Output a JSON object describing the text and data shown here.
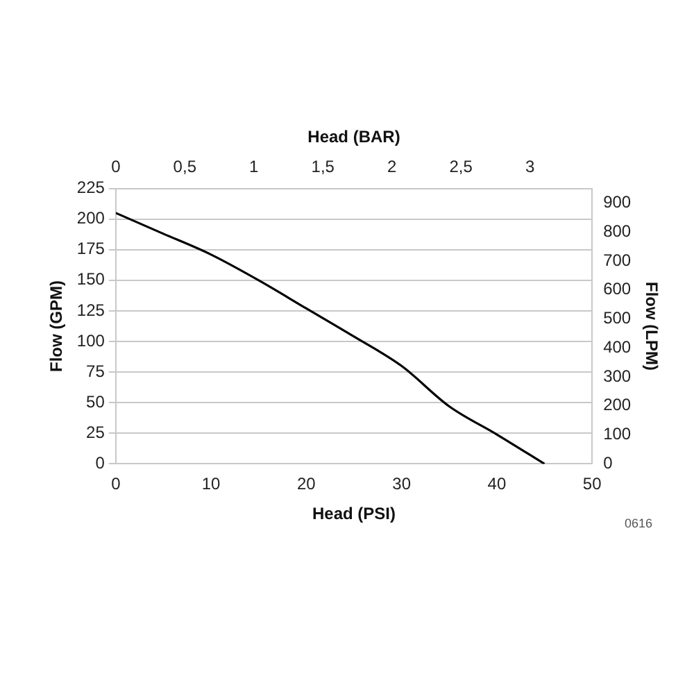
{
  "chart_data": {
    "type": "line",
    "xlabel": "Head (PSI)",
    "x2label": "Head (BAR)",
    "ylabel": "Flow (GPM)",
    "y2label": "Flow (LPM)",
    "x": [
      0,
      5,
      10,
      15,
      20,
      25,
      30,
      35,
      40,
      45
    ],
    "series": [
      {
        "color": "#000000",
        "values": [
          205,
          188,
          171,
          150,
          127,
          104,
          80,
          47,
          24,
          0
        ]
      }
    ],
    "xlim": [
      0,
      50
    ],
    "xticks": [
      0,
      10,
      20,
      30,
      40,
      50
    ],
    "x2lim": [
      0,
      3.45
    ],
    "x2ticks": [
      0,
      {
        "value": 0.5,
        "label": "0,5"
      },
      1,
      {
        "value": 1.5,
        "label": "1,5"
      },
      2,
      {
        "value": 2.5,
        "label": "2,5"
      },
      3
    ],
    "ylim": [
      0,
      225
    ],
    "yticks": [
      0,
      25,
      50,
      75,
      100,
      125,
      150,
      175,
      200,
      225
    ],
    "y2lim": [
      0,
      950
    ],
    "y2ticks": [
      0,
      100,
      200,
      300,
      400,
      500,
      600,
      700,
      800,
      900
    ],
    "grid": "y",
    "legend": false,
    "marker": "none",
    "line_style": "solid",
    "annotations": [
      "0616"
    ]
  }
}
